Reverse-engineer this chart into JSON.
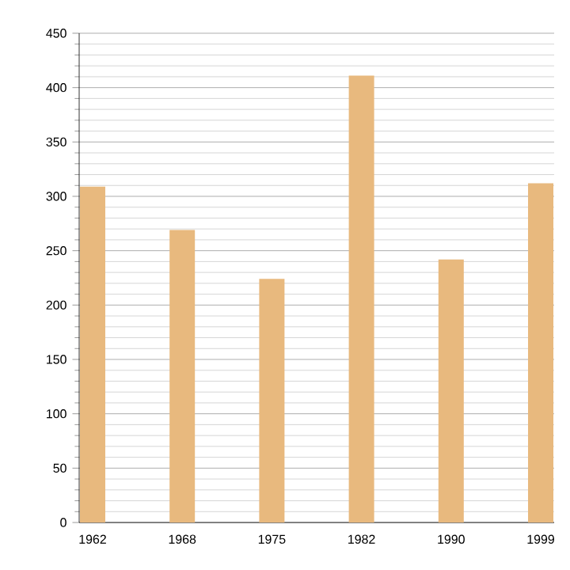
{
  "chart_data": {
    "type": "bar",
    "categories": [
      "1962",
      "1968",
      "1975",
      "1982",
      "1990",
      "1999"
    ],
    "values": [
      309,
      269,
      224,
      411,
      242,
      312
    ],
    "color": "#e8b97e",
    "ylim": [
      0,
      450
    ],
    "yticks": [
      0,
      50,
      100,
      150,
      200,
      250,
      300,
      350,
      400,
      450
    ],
    "grid": "y"
  }
}
